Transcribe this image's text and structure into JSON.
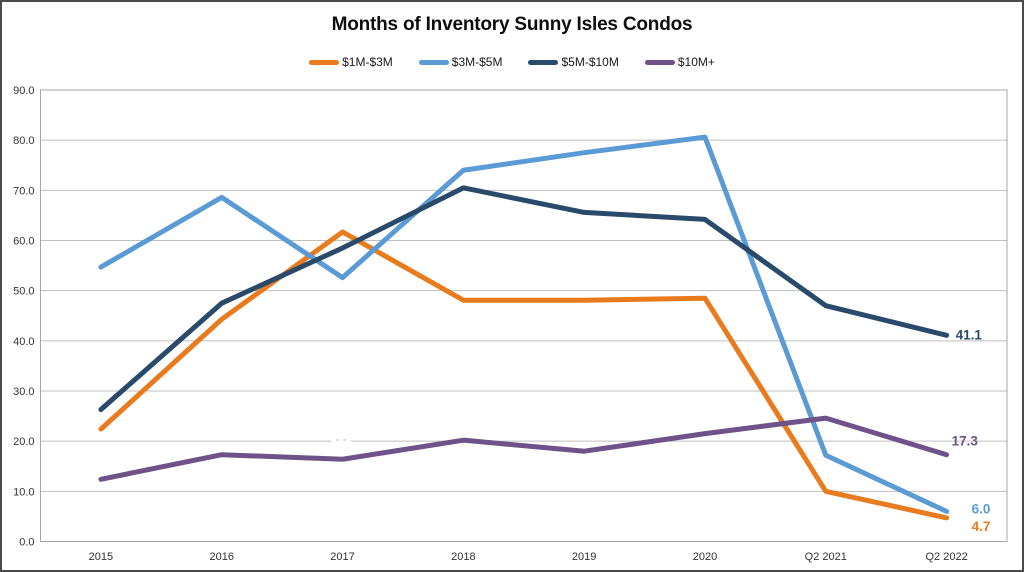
{
  "chart_data": {
    "type": "line",
    "title": "Months of Inventory Sunny Isles Condos",
    "categories": [
      "2015",
      "2016",
      "2017",
      "2018",
      "2019",
      "2020",
      "Q2 2021",
      "Q2 2022"
    ],
    "series": [
      {
        "name": "$1M-$3M",
        "color": "#E87B1E",
        "values": [
          22.4,
          44.3,
          61.7,
          48.1,
          48.1,
          48.5,
          10.0,
          4.7
        ],
        "end_label": "4.7"
      },
      {
        "name": "$3M-$5M",
        "color": "#5B9BD5",
        "values": [
          54.7,
          68.6,
          52.6,
          74.0,
          77.5,
          80.6,
          17.2,
          6.0
        ],
        "end_label": "6.0"
      },
      {
        "name": "$5M-$10M",
        "color": "#294A6B",
        "values": [
          26.3,
          47.5,
          58.5,
          70.5,
          65.6,
          64.2,
          47.0,
          41.1
        ],
        "end_label": "41.1"
      },
      {
        "name": "$10M+",
        "color": "#6E5289",
        "values": [
          12.4,
          17.3,
          16.4,
          20.2,
          18.0,
          21.5,
          24.6,
          17.3
        ],
        "end_label": "17.3"
      }
    ],
    "y_ticks": [
      "90.0",
      "80.0",
      "70.0",
      "60.0",
      "50.0",
      "40.0",
      "30.0",
      "20.0",
      "10.0",
      "0.0"
    ],
    "ylim": [
      0,
      90
    ],
    "grid": "horizontal",
    "legend_position": "top",
    "colors": {
      "gridline": "#BFBFBF",
      "plot_border": "#A6A6A6",
      "tick_label": "#333333",
      "frame_border": "#4a4a4a"
    }
  }
}
